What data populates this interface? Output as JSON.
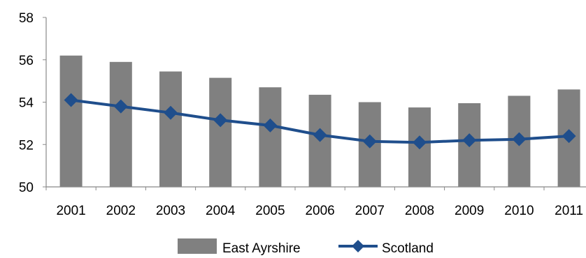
{
  "chart_data": {
    "type": "bar",
    "title": "",
    "xlabel": "",
    "ylabel": "",
    "categories": [
      "2001",
      "2002",
      "2003",
      "2004",
      "2005",
      "2006",
      "2007",
      "2008",
      "2009",
      "2010",
      "2011"
    ],
    "ylim": [
      50,
      58
    ],
    "yticks": [
      50,
      52,
      54,
      56,
      58
    ],
    "grid": false,
    "legend_position": "bottom",
    "series": [
      {
        "name": "East Ayrshire",
        "type": "bar",
        "color": "#808080",
        "values": [
          56.2,
          55.9,
          55.45,
          55.15,
          54.7,
          54.35,
          54.0,
          53.75,
          53.95,
          54.3,
          54.6
        ]
      },
      {
        "name": "Scotland",
        "type": "line",
        "color": "#1f4e8c",
        "marker": "diamond",
        "values": [
          54.1,
          53.8,
          53.5,
          53.15,
          52.9,
          52.45,
          52.15,
          52.1,
          52.2,
          52.25,
          52.4
        ]
      }
    ]
  }
}
